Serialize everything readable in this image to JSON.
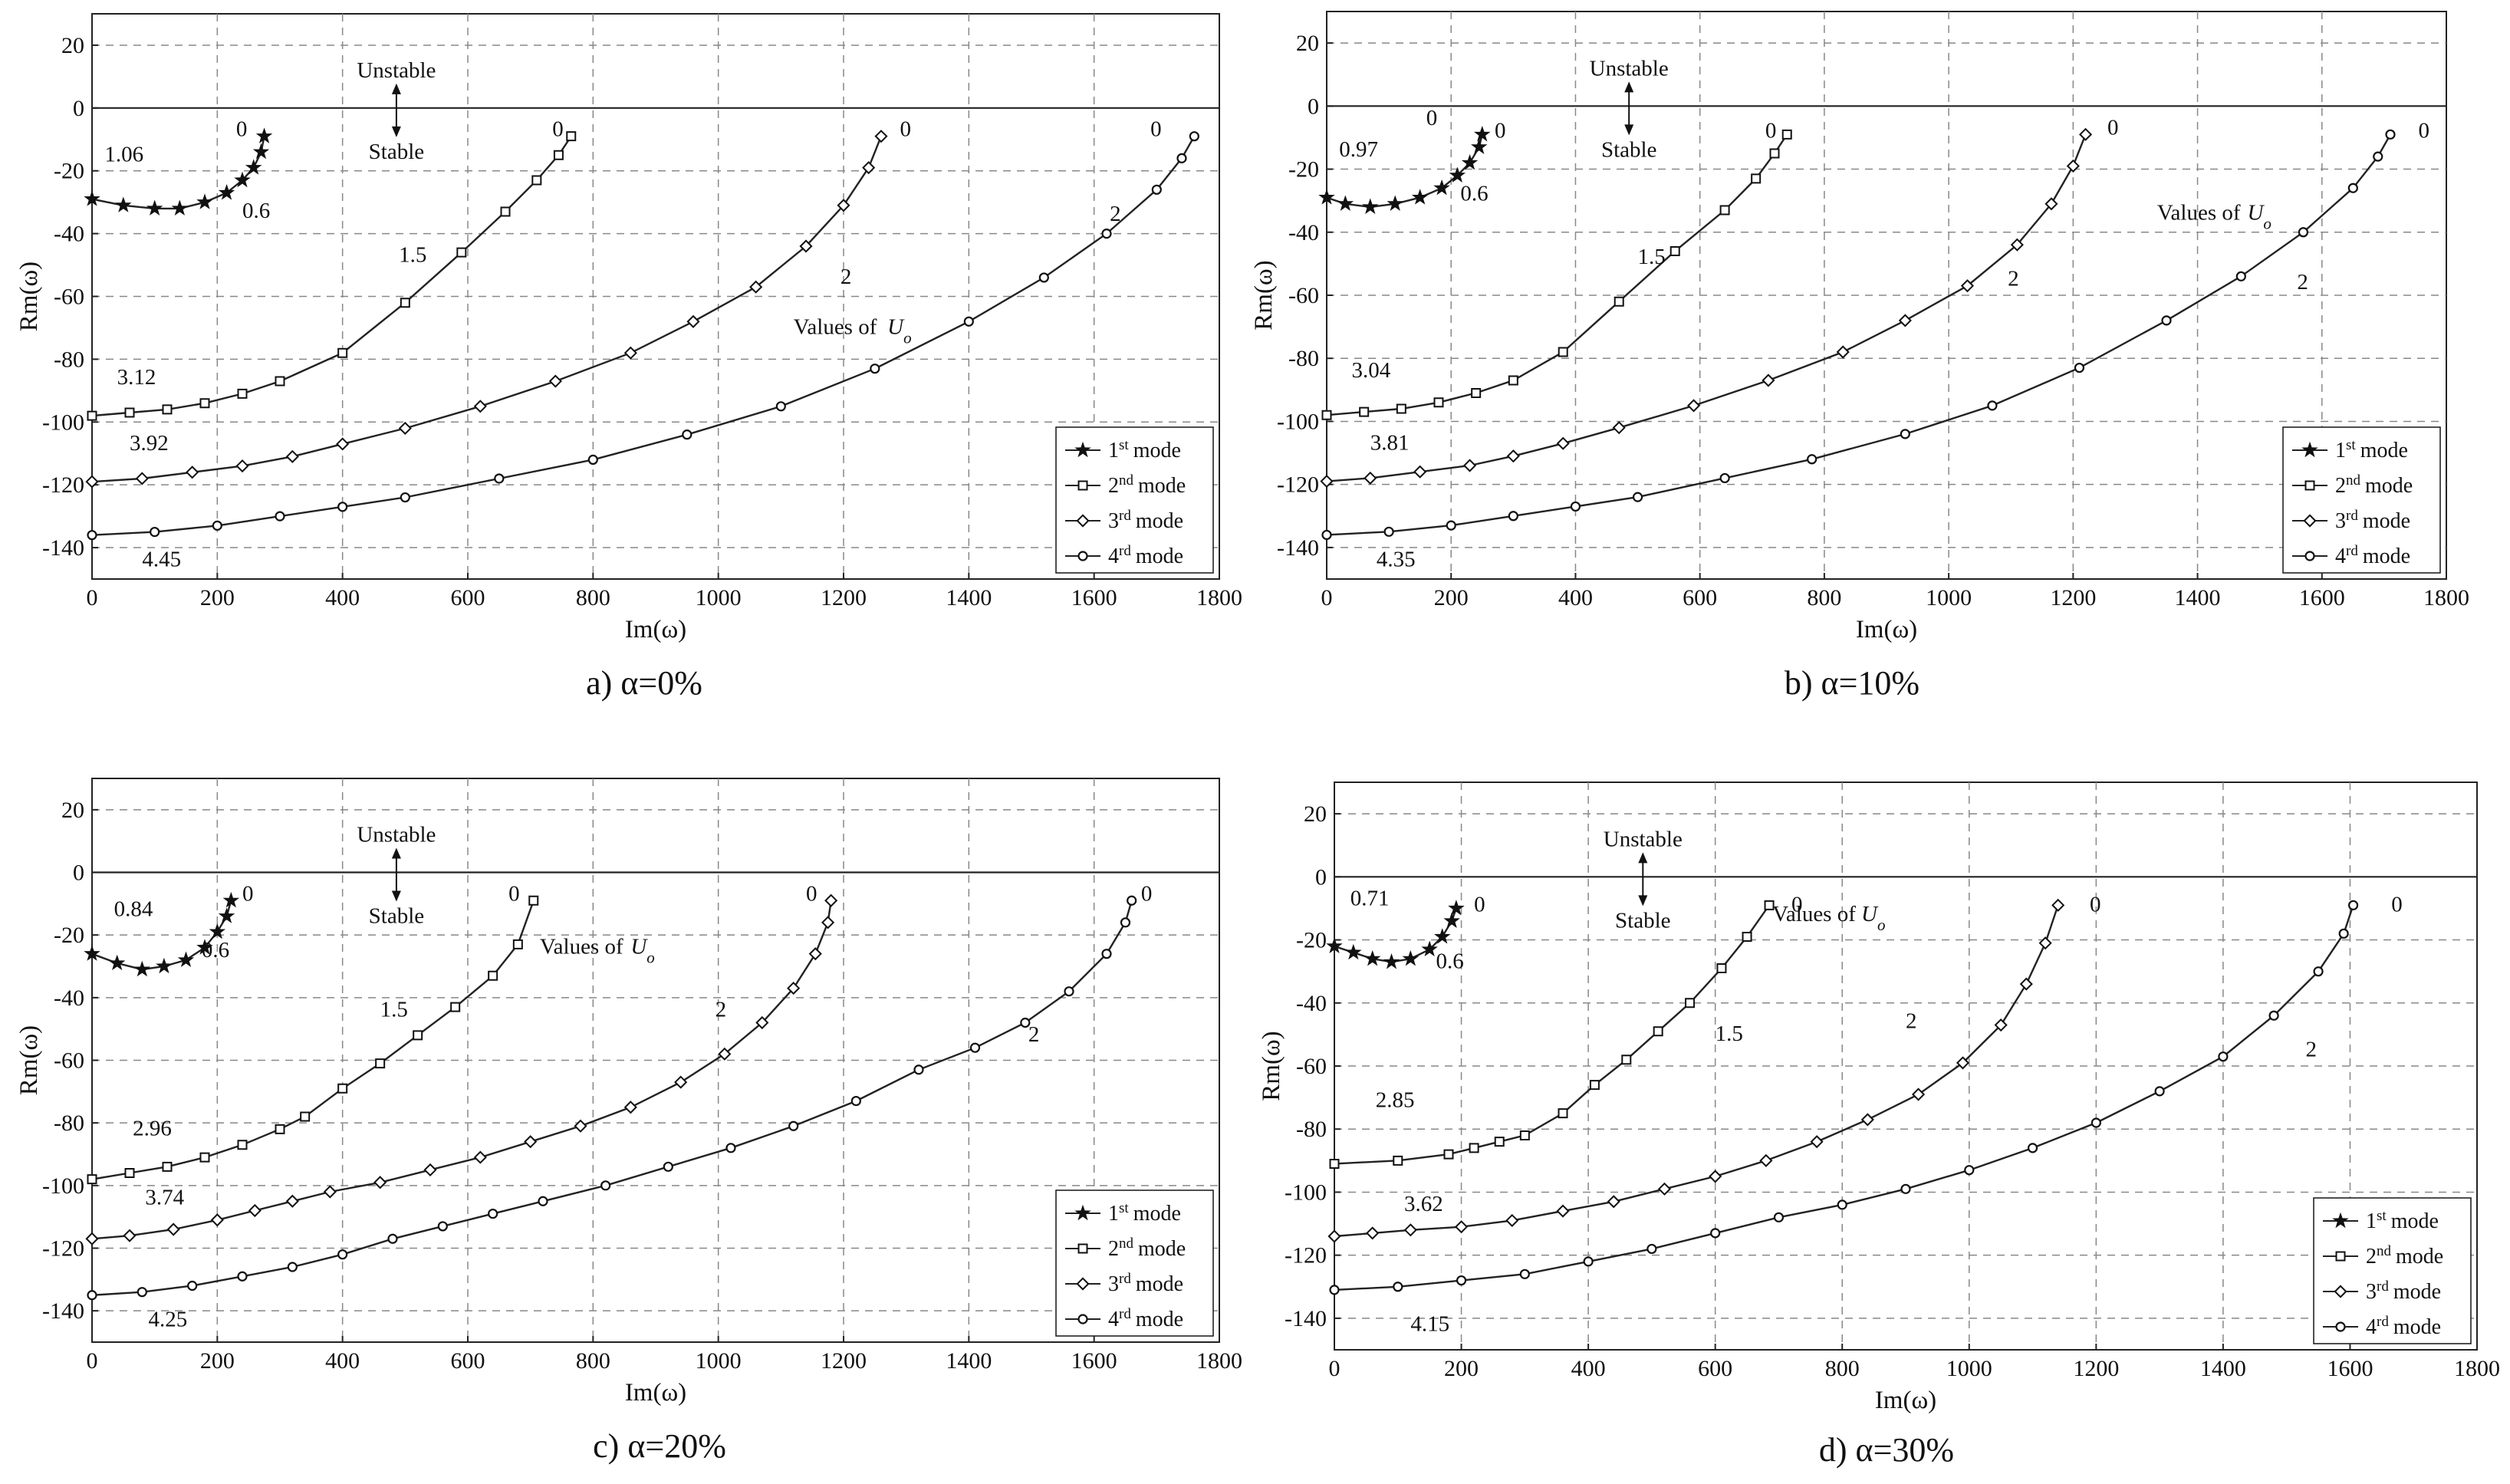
{
  "figure": {
    "panels": [
      {
        "caption": "a) α=0%"
      },
      {
        "caption": "b) α=10%"
      },
      {
        "caption": "c) α=20%"
      },
      {
        "caption": "d) α=30%"
      }
    ]
  },
  "chart_data": [
    {
      "type": "line",
      "caption": "a) α=0%",
      "xlabel": "Im(ω)",
      "ylabel": "Rm(ω)",
      "xlim": [
        0,
        1800
      ],
      "ylim": [
        -150,
        30
      ],
      "xticks": [
        0,
        200,
        400,
        600,
        800,
        1000,
        1200,
        1400,
        1600,
        1800
      ],
      "yticks": [
        20,
        0,
        -20,
        -40,
        -60,
        -80,
        -100,
        -120,
        -140
      ],
      "grid": true,
      "legend_position": "bottom-right",
      "legend": [
        "1st mode",
        "2nd mode",
        "3rd mode",
        "4rd mode"
      ],
      "region_labels": {
        "above": "Unstable",
        "below": "Stable"
      },
      "series": [
        {
          "name": "1st mode",
          "marker": "star",
          "x": [
            0,
            50,
            100,
            140,
            180,
            215,
            240,
            258,
            270,
            275
          ],
          "y": [
            -29,
            -31,
            -32,
            -32,
            -30,
            -27,
            -23,
            -19,
            -14,
            -9
          ]
        },
        {
          "name": "2nd mode",
          "marker": "square",
          "x": [
            0,
            60,
            120,
            180,
            240,
            300,
            400,
            500,
            590,
            660,
            710,
            745,
            765
          ],
          "y": [
            -98,
            -97,
            -96,
            -94,
            -91,
            -87,
            -78,
            -62,
            -46,
            -33,
            -23,
            -15,
            -9
          ]
        },
        {
          "name": "3rd mode",
          "marker": "diamond",
          "x": [
            0,
            80,
            160,
            240,
            320,
            400,
            500,
            620,
            740,
            860,
            960,
            1060,
            1140,
            1200,
            1240,
            1260
          ],
          "y": [
            -119,
            -118,
            -116,
            -114,
            -111,
            -107,
            -102,
            -95,
            -87,
            -78,
            -68,
            -57,
            -44,
            -31,
            -19,
            -9
          ]
        },
        {
          "name": "4rd mode",
          "marker": "circle",
          "x": [
            0,
            100,
            200,
            300,
            400,
            500,
            650,
            800,
            950,
            1100,
            1250,
            1400,
            1520,
            1620,
            1700,
            1740,
            1760
          ],
          "y": [
            -136,
            -135,
            -133,
            -130,
            -127,
            -124,
            -118,
            -112,
            -104,
            -95,
            -83,
            -68,
            -54,
            -40,
            -26,
            -16,
            -9
          ]
        }
      ],
      "annotations": [
        {
          "text": "0",
          "x": 230,
          "y": -9
        },
        {
          "text": "0.6",
          "x": 240,
          "y": -35
        },
        {
          "text": "1.06",
          "x": 20,
          "y": -17
        },
        {
          "text": "0",
          "x": 735,
          "y": -9
        },
        {
          "text": "1.5",
          "x": 490,
          "y": -49
        },
        {
          "text": "3.12",
          "x": 40,
          "y": -88
        },
        {
          "text": "3.92",
          "x": 60,
          "y": -109
        },
        {
          "text": "0",
          "x": 1290,
          "y": -9
        },
        {
          "text": "2",
          "x": 1195,
          "y": -56
        },
        {
          "text": "Values of",
          "x": 1120,
          "y": -72
        },
        {
          "text": "Uo",
          "x": 1270,
          "y": -72
        },
        {
          "text": "0",
          "x": 1690,
          "y": -9
        },
        {
          "text": "2",
          "x": 1625,
          "y": -36
        },
        {
          "text": "4.45",
          "x": 80,
          "y": -146
        }
      ]
    },
    {
      "type": "line",
      "caption": "b) α=10%",
      "xlabel": "Im(ω)",
      "ylabel": "Rm(ω)",
      "xlim": [
        0,
        1800
      ],
      "ylim": [
        -150,
        30
      ],
      "xticks": [
        0,
        200,
        400,
        600,
        800,
        1000,
        1200,
        1400,
        1600,
        1800
      ],
      "yticks": [
        20,
        0,
        -20,
        -40,
        -60,
        -80,
        -100,
        -120,
        -140
      ],
      "grid": true,
      "legend_position": "bottom-right",
      "legend": [
        "1st mode",
        "2nd mode",
        "3rd mode",
        "4rd mode"
      ],
      "region_labels": {
        "above": "Unstable",
        "below": "Stable"
      },
      "series": [
        {
          "name": "1st mode",
          "marker": "star",
          "x": [
            0,
            30,
            70,
            110,
            150,
            185,
            210,
            230,
            245,
            250
          ],
          "y": [
            -29,
            -31,
            -32,
            -31,
            -29,
            -26,
            -22,
            -18,
            -13,
            -9
          ]
        },
        {
          "name": "2nd mode",
          "marker": "square",
          "x": [
            0,
            60,
            120,
            180,
            240,
            300,
            380,
            470,
            560,
            640,
            690,
            720,
            740
          ],
          "y": [
            -98,
            -97,
            -96,
            -94,
            -91,
            -87,
            -78,
            -62,
            -46,
            -33,
            -23,
            -15,
            -9
          ]
        },
        {
          "name": "3rd mode",
          "marker": "diamond",
          "x": [
            0,
            70,
            150,
            230,
            300,
            380,
            470,
            590,
            710,
            830,
            930,
            1030,
            1110,
            1165,
            1200,
            1220
          ],
          "y": [
            -119,
            -118,
            -116,
            -114,
            -111,
            -107,
            -102,
            -95,
            -87,
            -78,
            -68,
            -57,
            -44,
            -31,
            -19,
            -9
          ]
        },
        {
          "name": "4rd mode",
          "marker": "circle",
          "x": [
            0,
            100,
            200,
            300,
            400,
            500,
            640,
            780,
            930,
            1070,
            1210,
            1350,
            1470,
            1570,
            1650,
            1690,
            1710
          ],
          "y": [
            -136,
            -135,
            -133,
            -130,
            -127,
            -124,
            -118,
            -112,
            -104,
            -95,
            -83,
            -68,
            -54,
            -40,
            -26,
            -16,
            -9
          ]
        }
      ],
      "annotations": [
        {
          "text": "0",
          "x": 160,
          "y": -6
        },
        {
          "text": "0",
          "x": 270,
          "y": -10
        },
        {
          "text": "0.6",
          "x": 215,
          "y": -30
        },
        {
          "text": "0.97",
          "x": 20,
          "y": -16
        },
        {
          "text": "0",
          "x": 705,
          "y": -10
        },
        {
          "text": "1.5",
          "x": 500,
          "y": -50
        },
        {
          "text": "3.04",
          "x": 40,
          "y": -86
        },
        {
          "text": "3.81",
          "x": 70,
          "y": -109
        },
        {
          "text": "0",
          "x": 1255,
          "y": -9
        },
        {
          "text": "2",
          "x": 1095,
          "y": -57
        },
        {
          "text": "Values of",
          "x": 1335,
          "y": -36
        },
        {
          "text": "Uo",
          "x": 1480,
          "y": -36
        },
        {
          "text": "0",
          "x": 1755,
          "y": -10
        },
        {
          "text": "2",
          "x": 1560,
          "y": -58
        },
        {
          "text": "4.35",
          "x": 80,
          "y": -146
        }
      ]
    },
    {
      "type": "line",
      "caption": "c) α=20%",
      "xlabel": "Im(ω)",
      "ylabel": "Rm(ω)",
      "xlim": [
        0,
        1800
      ],
      "ylim": [
        -150,
        30
      ],
      "xticks": [
        0,
        200,
        400,
        600,
        800,
        1000,
        1200,
        1400,
        1600,
        1800
      ],
      "yticks": [
        20,
        0,
        -20,
        -40,
        -60,
        -80,
        -100,
        -120,
        -140
      ],
      "grid": true,
      "legend_position": "bottom-right",
      "legend": [
        "1st mode",
        "2nd mode",
        "3rd mode",
        "4rd mode"
      ],
      "region_labels": {
        "above": "Unstable",
        "below": "Stable"
      },
      "series": [
        {
          "name": "1st mode",
          "marker": "star",
          "x": [
            0,
            40,
            80,
            115,
            150,
            180,
            200,
            215,
            222
          ],
          "y": [
            -26,
            -29,
            -31,
            -30,
            -28,
            -24,
            -19,
            -14,
            -9
          ]
        },
        {
          "name": "2nd mode",
          "marker": "square",
          "x": [
            0,
            60,
            120,
            180,
            240,
            300,
            340,
            400,
            460,
            520,
            580,
            640,
            680,
            705
          ],
          "y": [
            -98,
            -96,
            -94,
            -91,
            -87,
            -82,
            -78,
            -69,
            -61,
            -52,
            -43,
            -33,
            -23,
            -9
          ]
        },
        {
          "name": "3rd mode",
          "marker": "diamond",
          "x": [
            0,
            60,
            130,
            200,
            260,
            320,
            380,
            460,
            540,
            620,
            700,
            780,
            860,
            940,
            1010,
            1070,
            1120,
            1155,
            1175,
            1180
          ],
          "y": [
            -117,
            -116,
            -114,
            -111,
            -108,
            -105,
            -102,
            -99,
            -95,
            -91,
            -86,
            -81,
            -75,
            -67,
            -58,
            -48,
            -37,
            -26,
            -16,
            -9
          ]
        },
        {
          "name": "4rd mode",
          "marker": "circle",
          "x": [
            0,
            80,
            160,
            240,
            320,
            400,
            480,
            560,
            640,
            720,
            820,
            920,
            1020,
            1120,
            1220,
            1320,
            1410,
            1490,
            1560,
            1620,
            1650,
            1660
          ],
          "y": [
            -135,
            -134,
            -132,
            -129,
            -126,
            -122,
            -117,
            -113,
            -109,
            -105,
            -100,
            -94,
            -88,
            -81,
            -73,
            -63,
            -56,
            -48,
            -38,
            -26,
            -16,
            -9
          ]
        }
      ],
      "annotations": [
        {
          "text": "0",
          "x": 240,
          "y": -9
        },
        {
          "text": "0.6",
          "x": 175,
          "y": -27
        },
        {
          "text": "0.84",
          "x": 35,
          "y": -14
        },
        {
          "text": "0",
          "x": 665,
          "y": -9
        },
        {
          "text": "1.5",
          "x": 460,
          "y": -46
        },
        {
          "text": "2.96",
          "x": 65,
          "y": -84
        },
        {
          "text": "3.74",
          "x": 85,
          "y": -106
        },
        {
          "text": "0",
          "x": 1140,
          "y": -9
        },
        {
          "text": "2",
          "x": 995,
          "y": -46
        },
        {
          "text": "Values of",
          "x": 715,
          "y": -26
        },
        {
          "text": "Uo",
          "x": 860,
          "y": -26
        },
        {
          "text": "0",
          "x": 1675,
          "y": -9
        },
        {
          "text": "2",
          "x": 1495,
          "y": -54
        },
        {
          "text": "4.25",
          "x": 90,
          "y": -145
        }
      ]
    },
    {
      "type": "line",
      "caption": "d) α=30%",
      "xlabel": "Im(ω)",
      "ylabel": "Rm(ω)",
      "xlim": [
        0,
        1800
      ],
      "ylim": [
        -150,
        30
      ],
      "xticks": [
        0,
        200,
        400,
        600,
        800,
        1000,
        1200,
        1400,
        1600,
        1800
      ],
      "yticks": [
        20,
        0,
        -20,
        -40,
        -60,
        -80,
        -100,
        -120,
        -140
      ],
      "grid": true,
      "legend_position": "bottom-right",
      "legend": [
        "1st mode",
        "2nd mode",
        "3rd mode",
        "4rd mode"
      ],
      "region_labels": {
        "above": "Unstable",
        "below": "Stable"
      },
      "series": [
        {
          "name": "1st mode",
          "marker": "star",
          "x": [
            0,
            30,
            60,
            90,
            120,
            150,
            170,
            185,
            192
          ],
          "y": [
            -22,
            -24,
            -26,
            -27,
            -26,
            -23,
            -19,
            -14,
            -10
          ]
        },
        {
          "name": "2nd mode",
          "marker": "square",
          "x": [
            0,
            100,
            180,
            220,
            260,
            300,
            360,
            410,
            460,
            510,
            560,
            610,
            650,
            685
          ],
          "y": [
            -91,
            -90,
            -88,
            -86,
            -84,
            -82,
            -75,
            -66,
            -58,
            -49,
            -40,
            -29,
            -19,
            -9
          ]
        },
        {
          "name": "3rd mode",
          "marker": "diamond",
          "x": [
            0,
            60,
            120,
            200,
            280,
            360,
            440,
            520,
            600,
            680,
            760,
            840,
            920,
            990,
            1050,
            1090,
            1120,
            1140
          ],
          "y": [
            -114,
            -113,
            -112,
            -111,
            -109,
            -106,
            -103,
            -99,
            -95,
            -90,
            -84,
            -77,
            -69,
            -59,
            -47,
            -34,
            -21,
            -9
          ]
        },
        {
          "name": "4rd mode",
          "marker": "circle",
          "x": [
            0,
            100,
            200,
            300,
            400,
            500,
            600,
            700,
            800,
            900,
            1000,
            1100,
            1200,
            1300,
            1400,
            1480,
            1550,
            1590,
            1605
          ],
          "y": [
            -131,
            -130,
            -128,
            -126,
            -122,
            -118,
            -113,
            -108,
            -104,
            -99,
            -93,
            -86,
            -78,
            -68,
            -57,
            -44,
            -30,
            -18,
            -9
          ]
        }
      ],
      "annotations": [
        {
          "text": "0",
          "x": 220,
          "y": -11
        },
        {
          "text": "0.6",
          "x": 160,
          "y": -29
        },
        {
          "text": "0.71",
          "x": 25,
          "y": -9
        },
        {
          "text": "0",
          "x": 720,
          "y": -11
        },
        {
          "text": "1.5",
          "x": 600,
          "y": -52
        },
        {
          "text": "2.85",
          "x": 65,
          "y": -73
        },
        {
          "text": "3.62",
          "x": 110,
          "y": -106
        },
        {
          "text": "0",
          "x": 1190,
          "y": -11
        },
        {
          "text": "2",
          "x": 900,
          "y": -48
        },
        {
          "text": "Values of",
          "x": 690,
          "y": -14
        },
        {
          "text": "Uo",
          "x": 830,
          "y": -14
        },
        {
          "text": "0",
          "x": 1665,
          "y": -11
        },
        {
          "text": "2",
          "x": 1530,
          "y": -57
        },
        {
          "text": "4.15",
          "x": 120,
          "y": -144
        }
      ]
    }
  ]
}
